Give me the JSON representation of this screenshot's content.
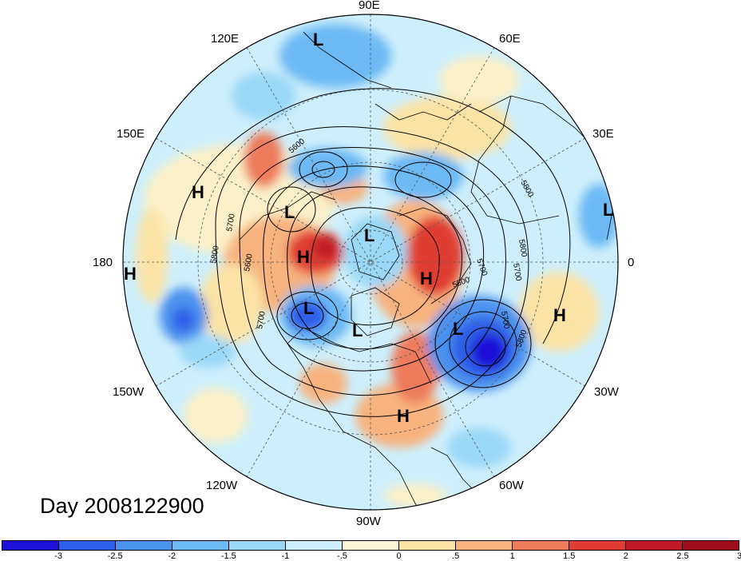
{
  "title": "Day 2008122900",
  "longitude_labels": [
    {
      "text": "90E",
      "name": "lon-90e"
    },
    {
      "text": "60E",
      "name": "lon-60e"
    },
    {
      "text": "30E",
      "name": "lon-30e"
    },
    {
      "text": "0",
      "name": "lon-0"
    },
    {
      "text": "30W",
      "name": "lon-30w"
    },
    {
      "text": "60W",
      "name": "lon-60w"
    },
    {
      "text": "90W",
      "name": "lon-90w"
    },
    {
      "text": "120W",
      "name": "lon-120w"
    },
    {
      "text": "150W",
      "name": "lon-150w"
    },
    {
      "text": "180",
      "name": "lon-180"
    },
    {
      "text": "150E",
      "name": "lon-150e"
    },
    {
      "text": "120E",
      "name": "lon-120e"
    }
  ],
  "pressure_centers": [
    {
      "type": "L",
      "name": "low-center"
    },
    {
      "type": "L",
      "name": "low-center"
    },
    {
      "type": "L",
      "name": "low-center"
    },
    {
      "type": "L",
      "name": "low-center"
    },
    {
      "type": "L",
      "name": "low-center"
    },
    {
      "type": "L",
      "name": "low-center"
    },
    {
      "type": "L",
      "name": "low-center"
    },
    {
      "type": "H",
      "name": "high-center"
    },
    {
      "type": "H",
      "name": "high-center"
    },
    {
      "type": "H",
      "name": "high-center"
    },
    {
      "type": "H",
      "name": "high-center"
    },
    {
      "type": "H",
      "name": "high-center"
    },
    {
      "type": "H",
      "name": "high-center"
    }
  ],
  "contour_labels": [
    "5600",
    "5700",
    "5800",
    "5600",
    "5700",
    "5700",
    "5800",
    "5500",
    "5700",
    "5800",
    "5700",
    "5800"
  ],
  "colorbar": {
    "colors": [
      "#1e10d8",
      "#2f5fe8",
      "#4b92ee",
      "#6cb9f4",
      "#9ad8f8",
      "#cdeffb",
      "#fbf7d6",
      "#fbe3a6",
      "#f7b27e",
      "#ee7c5c",
      "#e03c33",
      "#be1b26",
      "#9e0d1a"
    ],
    "ticks": [
      "-3",
      "-2.5",
      "-2",
      "-1.5",
      "-1",
      "-.5",
      "0",
      ".5",
      "1",
      "1.5",
      "2",
      "2.5",
      "3"
    ]
  }
}
